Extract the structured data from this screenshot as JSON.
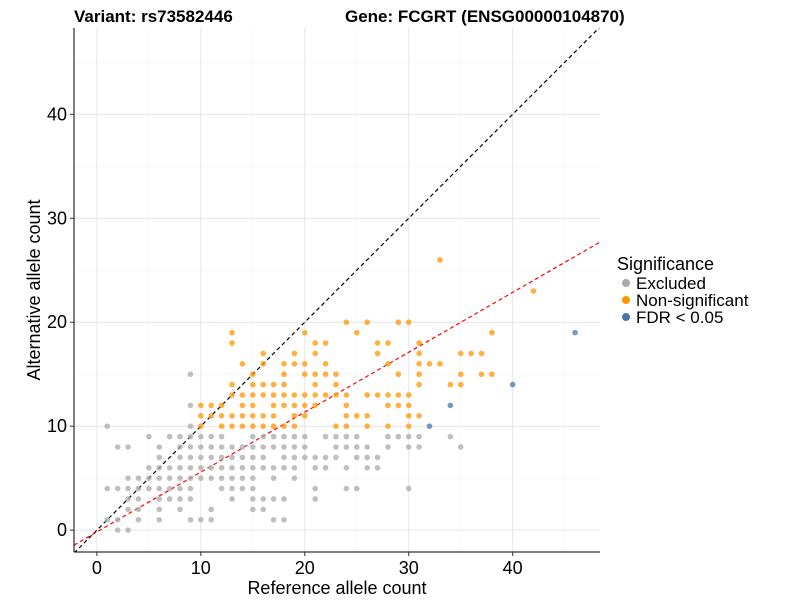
{
  "chart_data": {
    "type": "scatter",
    "title_left": "Variant: rs73582446",
    "title_right": "Gene: FCGRT (ENSG00000104870)",
    "xlabel": "Reference allele count",
    "ylabel": "Alternative allele count",
    "xlim": [
      -2.2,
      48.4
    ],
    "ylim": [
      -2.1,
      48.3
    ],
    "xticks": [
      0,
      10,
      20,
      30,
      40
    ],
    "yticks": [
      0,
      10,
      20,
      30,
      40
    ],
    "grid": true,
    "legend": {
      "title": "Significance",
      "position": "right",
      "entries": [
        "Excluded",
        "Non-significant",
        "FDR < 0.05"
      ]
    },
    "reference_lines": [
      {
        "name": "identity",
        "slope": 1,
        "intercept": 0,
        "color": "#000000",
        "dash": true
      },
      {
        "name": "fit",
        "slope": 0.576,
        "intercept": -0.17,
        "color": "#ff0000",
        "dash": true
      }
    ],
    "series": [
      {
        "name": "Excluded",
        "color": "#a9a9a9",
        "points": [
          [
            9,
            15
          ],
          [
            9,
            12
          ],
          [
            1,
            10
          ],
          [
            9,
            10
          ],
          [
            5,
            9
          ],
          [
            7,
            9
          ],
          [
            8,
            9
          ],
          [
            9,
            9
          ],
          [
            10,
            9
          ],
          [
            11,
            9
          ],
          [
            12,
            9
          ],
          [
            2,
            8
          ],
          [
            3,
            8
          ],
          [
            6,
            8
          ],
          [
            8,
            8
          ],
          [
            9,
            8
          ],
          [
            10,
            8
          ],
          [
            11,
            8
          ],
          [
            12,
            8
          ],
          [
            13,
            8
          ],
          [
            14,
            8
          ],
          [
            6,
            7
          ],
          [
            8,
            7
          ],
          [
            9,
            7
          ],
          [
            10,
            7
          ],
          [
            11,
            7
          ],
          [
            12,
            7
          ],
          [
            13,
            7
          ],
          [
            14,
            7
          ],
          [
            5,
            6
          ],
          [
            6,
            6
          ],
          [
            7,
            6
          ],
          [
            8,
            6
          ],
          [
            9,
            6
          ],
          [
            10,
            6
          ],
          [
            11,
            6
          ],
          [
            12,
            6
          ],
          [
            13,
            6
          ],
          [
            14,
            6
          ],
          [
            3,
            5
          ],
          [
            4,
            5
          ],
          [
            5,
            5
          ],
          [
            6,
            5
          ],
          [
            7,
            5
          ],
          [
            8,
            5
          ],
          [
            9,
            5
          ],
          [
            10,
            5
          ],
          [
            11,
            5
          ],
          [
            12,
            5
          ],
          [
            13,
            5
          ],
          [
            14,
            5
          ],
          [
            1,
            4
          ],
          [
            2,
            4
          ],
          [
            3,
            4
          ],
          [
            4,
            4
          ],
          [
            5,
            4
          ],
          [
            6,
            4
          ],
          [
            7,
            4
          ],
          [
            8,
            4
          ],
          [
            9,
            4
          ],
          [
            12,
            4
          ],
          [
            13,
            4
          ],
          [
            14,
            4
          ],
          [
            3,
            3
          ],
          [
            4,
            3
          ],
          [
            6,
            3
          ],
          [
            7,
            3
          ],
          [
            8,
            3
          ],
          [
            9,
            3
          ],
          [
            13,
            3
          ],
          [
            3,
            2
          ],
          [
            4,
            2
          ],
          [
            6,
            2
          ],
          [
            8,
            2
          ],
          [
            11,
            2
          ],
          [
            1,
            1
          ],
          [
            2,
            1
          ],
          [
            4,
            1
          ],
          [
            6,
            1
          ],
          [
            9,
            1
          ],
          [
            10,
            1
          ],
          [
            11,
            1
          ],
          [
            2,
            0
          ],
          [
            3,
            0
          ],
          [
            15,
            9
          ],
          [
            16,
            9
          ],
          [
            17,
            9
          ],
          [
            18,
            9
          ],
          [
            19,
            9
          ],
          [
            20,
            9
          ],
          [
            22,
            9
          ],
          [
            23,
            9
          ],
          [
            24,
            9
          ],
          [
            25,
            9
          ],
          [
            28,
            9
          ],
          [
            29,
            9
          ],
          [
            30,
            9
          ],
          [
            31,
            9
          ],
          [
            34,
            9
          ],
          [
            15,
            8
          ],
          [
            16,
            8
          ],
          [
            17,
            8
          ],
          [
            18,
            8
          ],
          [
            19,
            8
          ],
          [
            20,
            8
          ],
          [
            23,
            8
          ],
          [
            24,
            8
          ],
          [
            25,
            8
          ],
          [
            26,
            8
          ],
          [
            28,
            8
          ],
          [
            30,
            8
          ],
          [
            31,
            8
          ],
          [
            35,
            8
          ],
          [
            15,
            7
          ],
          [
            16,
            7
          ],
          [
            18,
            7
          ],
          [
            19,
            7
          ],
          [
            20,
            7
          ],
          [
            21,
            7
          ],
          [
            22,
            7
          ],
          [
            23,
            7
          ],
          [
            25,
            7
          ],
          [
            26,
            7
          ],
          [
            27,
            7
          ],
          [
            15,
            6
          ],
          [
            16,
            6
          ],
          [
            17,
            6
          ],
          [
            18,
            6
          ],
          [
            19,
            6
          ],
          [
            21,
            6
          ],
          [
            22,
            6
          ],
          [
            24,
            6
          ],
          [
            26,
            6
          ],
          [
            27,
            6
          ],
          [
            15,
            5
          ],
          [
            17,
            5
          ],
          [
            19,
            5
          ],
          [
            15,
            4
          ],
          [
            21,
            4
          ],
          [
            24,
            4
          ],
          [
            25,
            4
          ],
          [
            30,
            4
          ],
          [
            15,
            3
          ],
          [
            16,
            3
          ],
          [
            17,
            3
          ],
          [
            18,
            3
          ],
          [
            21,
            3
          ],
          [
            15,
            2
          ],
          [
            16,
            2
          ],
          [
            17,
            1
          ],
          [
            18,
            1
          ]
        ]
      },
      {
        "name": "Non-significant",
        "color": "#ff9500",
        "points": [
          [
            13,
            19
          ],
          [
            13,
            18
          ],
          [
            14,
            16
          ],
          [
            13,
            14
          ],
          [
            13,
            13
          ],
          [
            14,
            13
          ],
          [
            10,
            12
          ],
          [
            11,
            12
          ],
          [
            12,
            12
          ],
          [
            14,
            12
          ],
          [
            10,
            11
          ],
          [
            11,
            11
          ],
          [
            12,
            11
          ],
          [
            13,
            11
          ],
          [
            14,
            11
          ],
          [
            10,
            10
          ],
          [
            12,
            10
          ],
          [
            13,
            10
          ],
          [
            14,
            10
          ],
          [
            24,
            20
          ],
          [
            26,
            20
          ],
          [
            29,
            20
          ],
          [
            30,
            20
          ],
          [
            20,
            19
          ],
          [
            25,
            19
          ],
          [
            38,
            19
          ],
          [
            21,
            18
          ],
          [
            22,
            18
          ],
          [
            27,
            18
          ],
          [
            28,
            18
          ],
          [
            31,
            18
          ],
          [
            16,
            17
          ],
          [
            19,
            17
          ],
          [
            21,
            17
          ],
          [
            27,
            17
          ],
          [
            31,
            17
          ],
          [
            35,
            17
          ],
          [
            36,
            17
          ],
          [
            37,
            17
          ],
          [
            16,
            16
          ],
          [
            18,
            16
          ],
          [
            19,
            16
          ],
          [
            20,
            16
          ],
          [
            22,
            16
          ],
          [
            28,
            16
          ],
          [
            31,
            16
          ],
          [
            32,
            16
          ],
          [
            33,
            16
          ],
          [
            15,
            15
          ],
          [
            18,
            15
          ],
          [
            20,
            15
          ],
          [
            21,
            15
          ],
          [
            22,
            15
          ],
          [
            23,
            15
          ],
          [
            29,
            15
          ],
          [
            31,
            15
          ],
          [
            35,
            15
          ],
          [
            37,
            15
          ],
          [
            38,
            15
          ],
          [
            15,
            14
          ],
          [
            16,
            14
          ],
          [
            17,
            14
          ],
          [
            18,
            14
          ],
          [
            21,
            14
          ],
          [
            23,
            14
          ],
          [
            31,
            14
          ],
          [
            34,
            14
          ],
          [
            35,
            14
          ],
          [
            15,
            13
          ],
          [
            16,
            13
          ],
          [
            17,
            13
          ],
          [
            18,
            13
          ],
          [
            19,
            13
          ],
          [
            20,
            13
          ],
          [
            21,
            13
          ],
          [
            22,
            13
          ],
          [
            23,
            13
          ],
          [
            24,
            13
          ],
          [
            26,
            13
          ],
          [
            27,
            13
          ],
          [
            28,
            13
          ],
          [
            29,
            13
          ],
          [
            30,
            13
          ],
          [
            15,
            12
          ],
          [
            17,
            12
          ],
          [
            18,
            12
          ],
          [
            19,
            12
          ],
          [
            20,
            12
          ],
          [
            21,
            12
          ],
          [
            24,
            12
          ],
          [
            28,
            12
          ],
          [
            29,
            12
          ],
          [
            30,
            12
          ],
          [
            15,
            11
          ],
          [
            16,
            11
          ],
          [
            17,
            11
          ],
          [
            19,
            11
          ],
          [
            20,
            11
          ],
          [
            24,
            11
          ],
          [
            25,
            11
          ],
          [
            26,
            11
          ],
          [
            30,
            11
          ],
          [
            31,
            11
          ],
          [
            15,
            10
          ],
          [
            16,
            10
          ],
          [
            17,
            10
          ],
          [
            18,
            10
          ],
          [
            19,
            10
          ],
          [
            23,
            10
          ],
          [
            24,
            10
          ],
          [
            26,
            10
          ],
          [
            28,
            10
          ],
          [
            30,
            10
          ],
          [
            33,
            26
          ],
          [
            42,
            23
          ]
        ]
      },
      {
        "name": "FDR < 0.05",
        "color": "#4a76a8",
        "points": [
          [
            32,
            10
          ],
          [
            34,
            12
          ],
          [
            40,
            14
          ],
          [
            46,
            19
          ]
        ]
      }
    ]
  }
}
